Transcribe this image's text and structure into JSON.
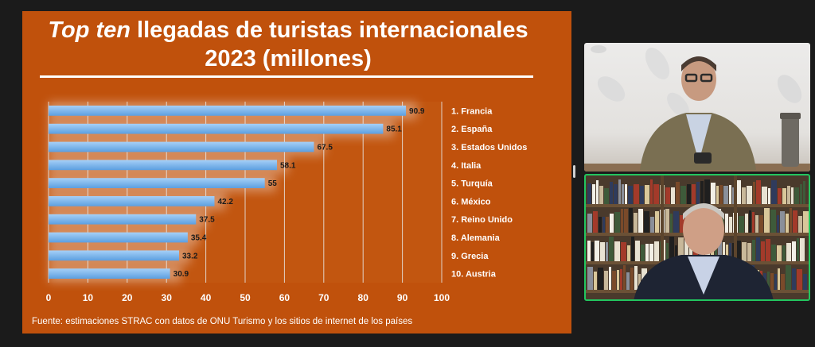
{
  "slide": {
    "title_italic": "Top ten",
    "title_rest": " llegadas de turistas internacionales",
    "title_line2": "2023 (millones)",
    "source": "Fuente: estimaciones STRAC con datos de ONU Turismo y los sitios de internet de los países"
  },
  "chart_data": {
    "type": "bar",
    "orientation": "horizontal",
    "categories": [
      "1. Francia",
      "2. España",
      "3. Estados Unidos",
      "4. Italia",
      "5. Turquía",
      "6. México",
      "7. Reino Unido",
      "8. Alemania",
      "9. Grecia",
      "10. Austria"
    ],
    "values": [
      90.9,
      85.1,
      67.5,
      58.1,
      55,
      42.2,
      37.5,
      35.4,
      33.2,
      30.9
    ],
    "data_labels": [
      "90.9",
      "85.1",
      "67.5",
      "58.1",
      "55",
      "42.2",
      "37.5",
      "35.4",
      "33.2",
      "30.9"
    ],
    "xticks": [
      "0",
      "10",
      "20",
      "30",
      "40",
      "50",
      "60",
      "70",
      "80",
      "90",
      "100"
    ],
    "xlim": [
      0,
      100
    ],
    "grid": true,
    "bar_color": "#7ab6ec"
  },
  "colors": {
    "slide_bg": "#c0510c",
    "app_bg": "#1b1b1b",
    "active_speaker_border": "#22c55e"
  }
}
